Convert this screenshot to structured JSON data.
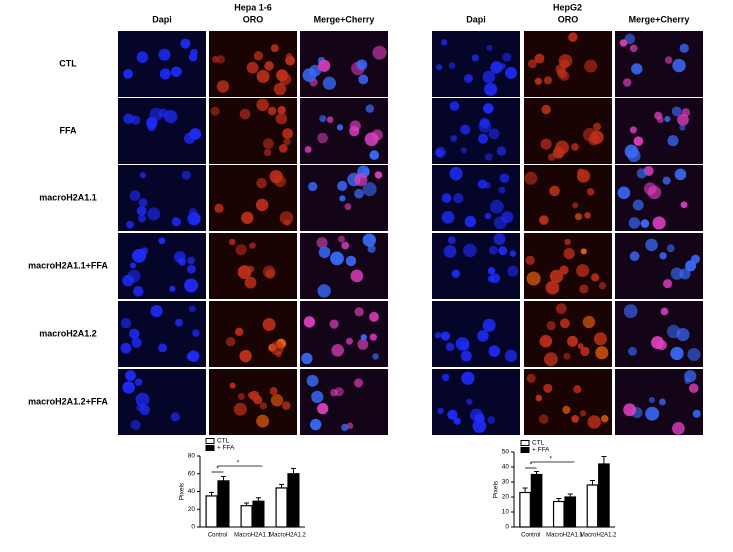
{
  "figure": {
    "groups": [
      {
        "title": "Hepa 1-6",
        "columns": [
          "Dapi",
          "ORO",
          "Merge+Cherry"
        ]
      },
      {
        "title": "HepG2",
        "columns": [
          "Dapi",
          "ORO",
          "Merge+Cherry"
        ]
      }
    ],
    "rows": [
      "CTL",
      "FFA",
      "macroH2A1.1",
      "macroH2A1.1+FFA",
      "macroH2A1.2",
      "macroH2A1.2+FFA"
    ]
  },
  "chart_data": [
    {
      "type": "bar",
      "y_label": "Pixels",
      "categories": [
        "Control",
        "MacroH2A1.1",
        "MacroH2A1.2"
      ],
      "series": [
        {
          "name": "CTL",
          "color": "#ffffff",
          "values": [
            35,
            24,
            44
          ],
          "errors": [
            4,
            3,
            4
          ]
        },
        {
          "name": "+ FFA",
          "color": "#000000",
          "values": [
            52,
            29,
            60
          ],
          "errors": [
            5,
            4,
            6
          ]
        }
      ],
      "ylim": [
        0,
        80
      ],
      "yticks": [
        0,
        20,
        40,
        60,
        80
      ],
      "annotations": [
        "*",
        "*"
      ]
    },
    {
      "type": "bar",
      "y_label": "Pixels",
      "categories": [
        "Control",
        "MacroH2A1.1",
        "MacroH2A1.2"
      ],
      "series": [
        {
          "name": "CTL",
          "color": "#ffffff",
          "values": [
            23,
            17,
            28
          ],
          "errors": [
            3,
            2,
            3
          ]
        },
        {
          "name": "+ FFA",
          "color": "#000000",
          "values": [
            35,
            20,
            42
          ],
          "errors": [
            2,
            2,
            5
          ]
        }
      ],
      "ylim": [
        0,
        50
      ],
      "yticks": [
        0,
        10,
        20,
        30,
        40,
        50
      ],
      "annotations": [
        "*",
        "*"
      ]
    }
  ]
}
